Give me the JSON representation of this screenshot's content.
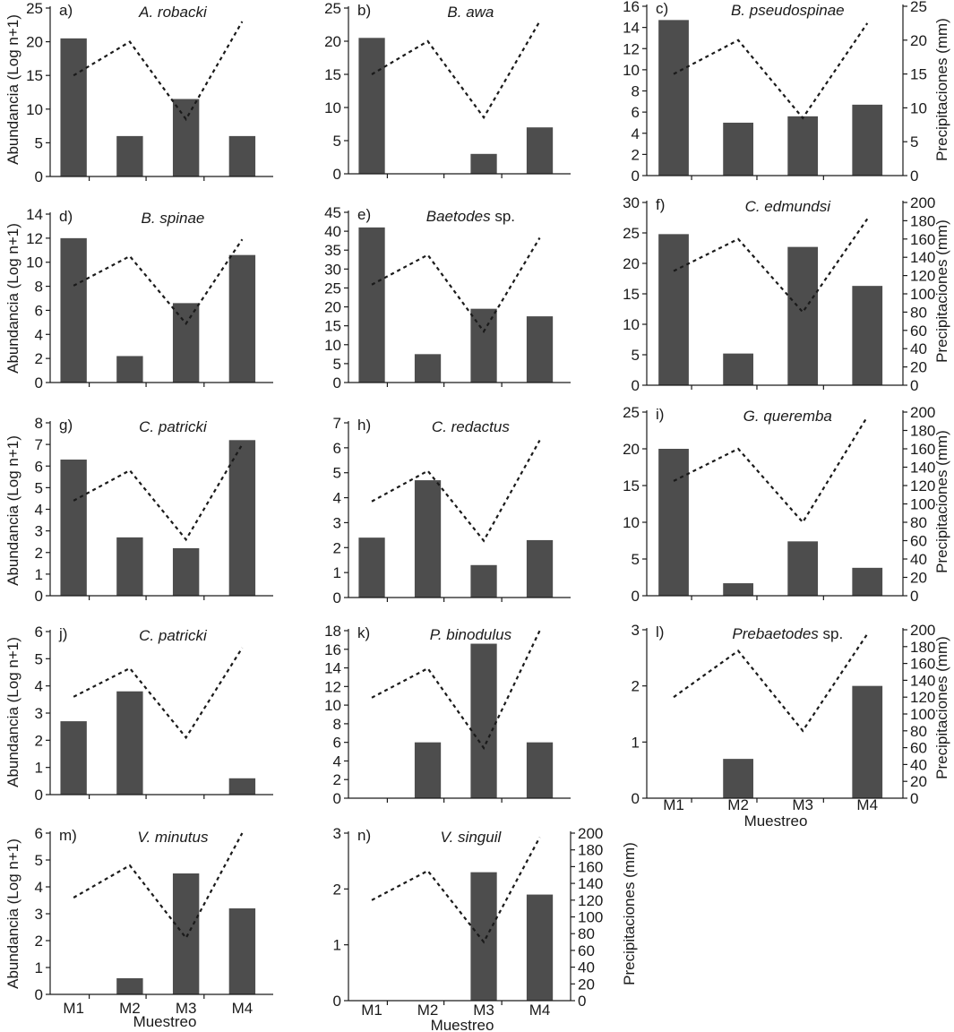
{
  "figure": {
    "y_axis_title": "Abundancia (Log n+1)",
    "y2_axis_title": "Precipitaciones (mm)",
    "x_axis_title": "Muestreo",
    "x_categories": [
      "M1",
      "M2",
      "M3",
      "M4"
    ]
  },
  "chart_data": [
    {
      "type": "bar",
      "panel": "a)",
      "title": "A. robacki",
      "categories": [
        "M1",
        "M2",
        "M3",
        "M4"
      ],
      "values": [
        20.5,
        6,
        11.5,
        6
      ],
      "ylim": [
        0,
        25
      ],
      "yticks": [
        0,
        5,
        10,
        15,
        20,
        25
      ],
      "precipitation": [
        15,
        20,
        8.5,
        23
      ],
      "y2lim": [
        0,
        25
      ],
      "y2ticks": []
    },
    {
      "type": "bar",
      "panel": "b)",
      "title": "B. awa",
      "categories": [
        "M1",
        "M2",
        "M3",
        "M4"
      ],
      "values": [
        20.5,
        0,
        3,
        7
      ],
      "ylim": [
        0,
        25
      ],
      "yticks": [
        0,
        5,
        10,
        15,
        20,
        25
      ],
      "precipitation": [
        15,
        20,
        8.5,
        23
      ],
      "y2lim": [
        0,
        25
      ],
      "y2ticks": []
    },
    {
      "type": "bar",
      "panel": "c)",
      "title": "B. pseudospinae",
      "categories": [
        "M1",
        "M2",
        "M3",
        "M4"
      ],
      "values": [
        14.7,
        5,
        5.6,
        6.7
      ],
      "ylim": [
        0,
        16
      ],
      "yticks": [
        0,
        2,
        4,
        6,
        8,
        10,
        12,
        14,
        16
      ],
      "precipitation": [
        15,
        20,
        8.5,
        22.5
      ],
      "y2lim": [
        0,
        25
      ],
      "y2ticks": [
        0,
        5,
        10,
        15,
        20,
        25
      ]
    },
    {
      "type": "bar",
      "panel": "d)",
      "title": "B. spinae",
      "categories": [
        "M1",
        "M2",
        "M3",
        "M4"
      ],
      "values": [
        12,
        2.2,
        6.6,
        10.6
      ],
      "ylim": [
        0,
        14
      ],
      "yticks": [
        0,
        2,
        4,
        6,
        8,
        10,
        12,
        14
      ],
      "precipitation": [
        115,
        150,
        70,
        170
      ],
      "y2lim": [
        0,
        200
      ],
      "y2ticks": []
    },
    {
      "type": "bar",
      "panel": "e)",
      "title": "Baetodes",
      "title_suffix": " sp.",
      "categories": [
        "M1",
        "M2",
        "M3",
        "M4"
      ],
      "values": [
        41,
        7.5,
        19.5,
        17.5
      ],
      "ylim": [
        0,
        45
      ],
      "yticks": [
        0,
        5,
        10,
        15,
        20,
        25,
        30,
        35,
        40,
        45
      ],
      "precipitation": [
        115,
        150,
        60,
        170
      ],
      "y2lim": [
        0,
        200
      ],
      "y2ticks": []
    },
    {
      "type": "bar",
      "panel": "f)",
      "title": "C. edmundsi",
      "categories": [
        "M1",
        "M2",
        "M3",
        "M4"
      ],
      "values": [
        24.8,
        5.2,
        22.7,
        16.3
      ],
      "ylim": [
        0,
        30
      ],
      "yticks": [
        0,
        5,
        10,
        15,
        20,
        25,
        30
      ],
      "precipitation": [
        125,
        160,
        80,
        182
      ],
      "y2lim": [
        0,
        200
      ],
      "y2ticks": [
        0,
        20,
        40,
        60,
        80,
        100,
        120,
        140,
        160,
        180,
        200
      ]
    },
    {
      "type": "bar",
      "panel": "g)",
      "title": "C. patricki",
      "categories": [
        "M1",
        "M2",
        "M3",
        "M4"
      ],
      "values": [
        6.3,
        2.7,
        2.2,
        7.2
      ],
      "ylim": [
        0,
        8
      ],
      "yticks": [
        0,
        1,
        2,
        3,
        4,
        5,
        6,
        7,
        8
      ],
      "precipitation": [
        110,
        145,
        65,
        175
      ],
      "y2lim": [
        0,
        200
      ],
      "y2ticks": []
    },
    {
      "type": "bar",
      "panel": "h)",
      "title": "C. redactus",
      "categories": [
        "M1",
        "M2",
        "M3",
        "M4"
      ],
      "values": [
        2.4,
        4.7,
        1.3,
        2.3
      ],
      "ylim": [
        0,
        7
      ],
      "yticks": [
        0,
        1,
        2,
        3,
        4,
        5,
        6,
        7
      ],
      "precipitation": [
        110,
        145,
        65,
        180
      ],
      "y2lim": [
        0,
        200
      ],
      "y2ticks": []
    },
    {
      "type": "bar",
      "panel": "i)",
      "title": "G. queremba",
      "categories": [
        "M1",
        "M2",
        "M3",
        "M4"
      ],
      "values": [
        20,
        1.7,
        7.4,
        3.8
      ],
      "ylim": [
        0,
        25
      ],
      "yticks": [
        0,
        5,
        10,
        15,
        20,
        25
      ],
      "precipitation": [
        125,
        160,
        80,
        195
      ],
      "y2lim": [
        0,
        200
      ],
      "y2ticks": [
        0,
        20,
        40,
        60,
        80,
        100,
        120,
        140,
        160,
        180,
        200
      ]
    },
    {
      "type": "bar",
      "panel": "j)",
      "title": "C. patricki",
      "categories": [
        "M1",
        "M2",
        "M3",
        "M4"
      ],
      "values": [
        2.7,
        3.8,
        0,
        0.6
      ],
      "ylim": [
        0,
        6
      ],
      "yticks": [
        0,
        1,
        2,
        3,
        4,
        5,
        6
      ],
      "precipitation": [
        120,
        155,
        70,
        180
      ],
      "y2lim": [
        0,
        200
      ],
      "y2ticks": []
    },
    {
      "type": "bar",
      "panel": "k)",
      "title": "P. binodulus",
      "categories": [
        "M1",
        "M2",
        "M3",
        "M4"
      ],
      "values": [
        0,
        6,
        16.6,
        6
      ],
      "ylim": [
        0,
        18
      ],
      "yticks": [
        0,
        2,
        4,
        6,
        8,
        10,
        12,
        14,
        16,
        18
      ],
      "precipitation": [
        120,
        155,
        60,
        200
      ],
      "y2lim": [
        0,
        200
      ],
      "y2ticks": []
    },
    {
      "type": "bar",
      "panel": "l)",
      "title": "Prebaetodes",
      "title_suffix": " sp.",
      "categories": [
        "M1",
        "M2",
        "M3",
        "M4"
      ],
      "values": [
        0,
        0.7,
        0,
        2
      ],
      "ylim": [
        0,
        3
      ],
      "yticks": [
        0,
        1,
        2,
        3
      ],
      "precipitation": [
        120,
        175,
        80,
        195
      ],
      "y2lim": [
        0,
        200
      ],
      "y2ticks": [
        0,
        20,
        40,
        60,
        80,
        100,
        120,
        140,
        160,
        180,
        200
      ]
    },
    {
      "type": "bar",
      "panel": "m)",
      "title": "V. minutus",
      "categories": [
        "M1",
        "M2",
        "M3",
        "M4"
      ],
      "values": [
        0,
        0.6,
        4.5,
        3.2
      ],
      "ylim": [
        0,
        6
      ],
      "yticks": [
        0,
        1,
        2,
        3,
        4,
        5,
        6
      ],
      "precipitation": [
        120,
        160,
        70,
        200
      ],
      "y2lim": [
        0,
        200
      ],
      "y2ticks": []
    },
    {
      "type": "bar",
      "panel": "n)",
      "title": "V. singuil",
      "categories": [
        "M1",
        "M2",
        "M3",
        "M4"
      ],
      "values": [
        0,
        0,
        2.3,
        1.9
      ],
      "ylim": [
        0,
        3
      ],
      "yticks": [
        0,
        1,
        2,
        3
      ],
      "precipitation": [
        120,
        155,
        70,
        195
      ],
      "y2lim": [
        0,
        200
      ],
      "y2ticks": [
        0,
        20,
        40,
        60,
        80,
        100,
        120,
        140,
        160,
        180,
        200
      ]
    }
  ]
}
